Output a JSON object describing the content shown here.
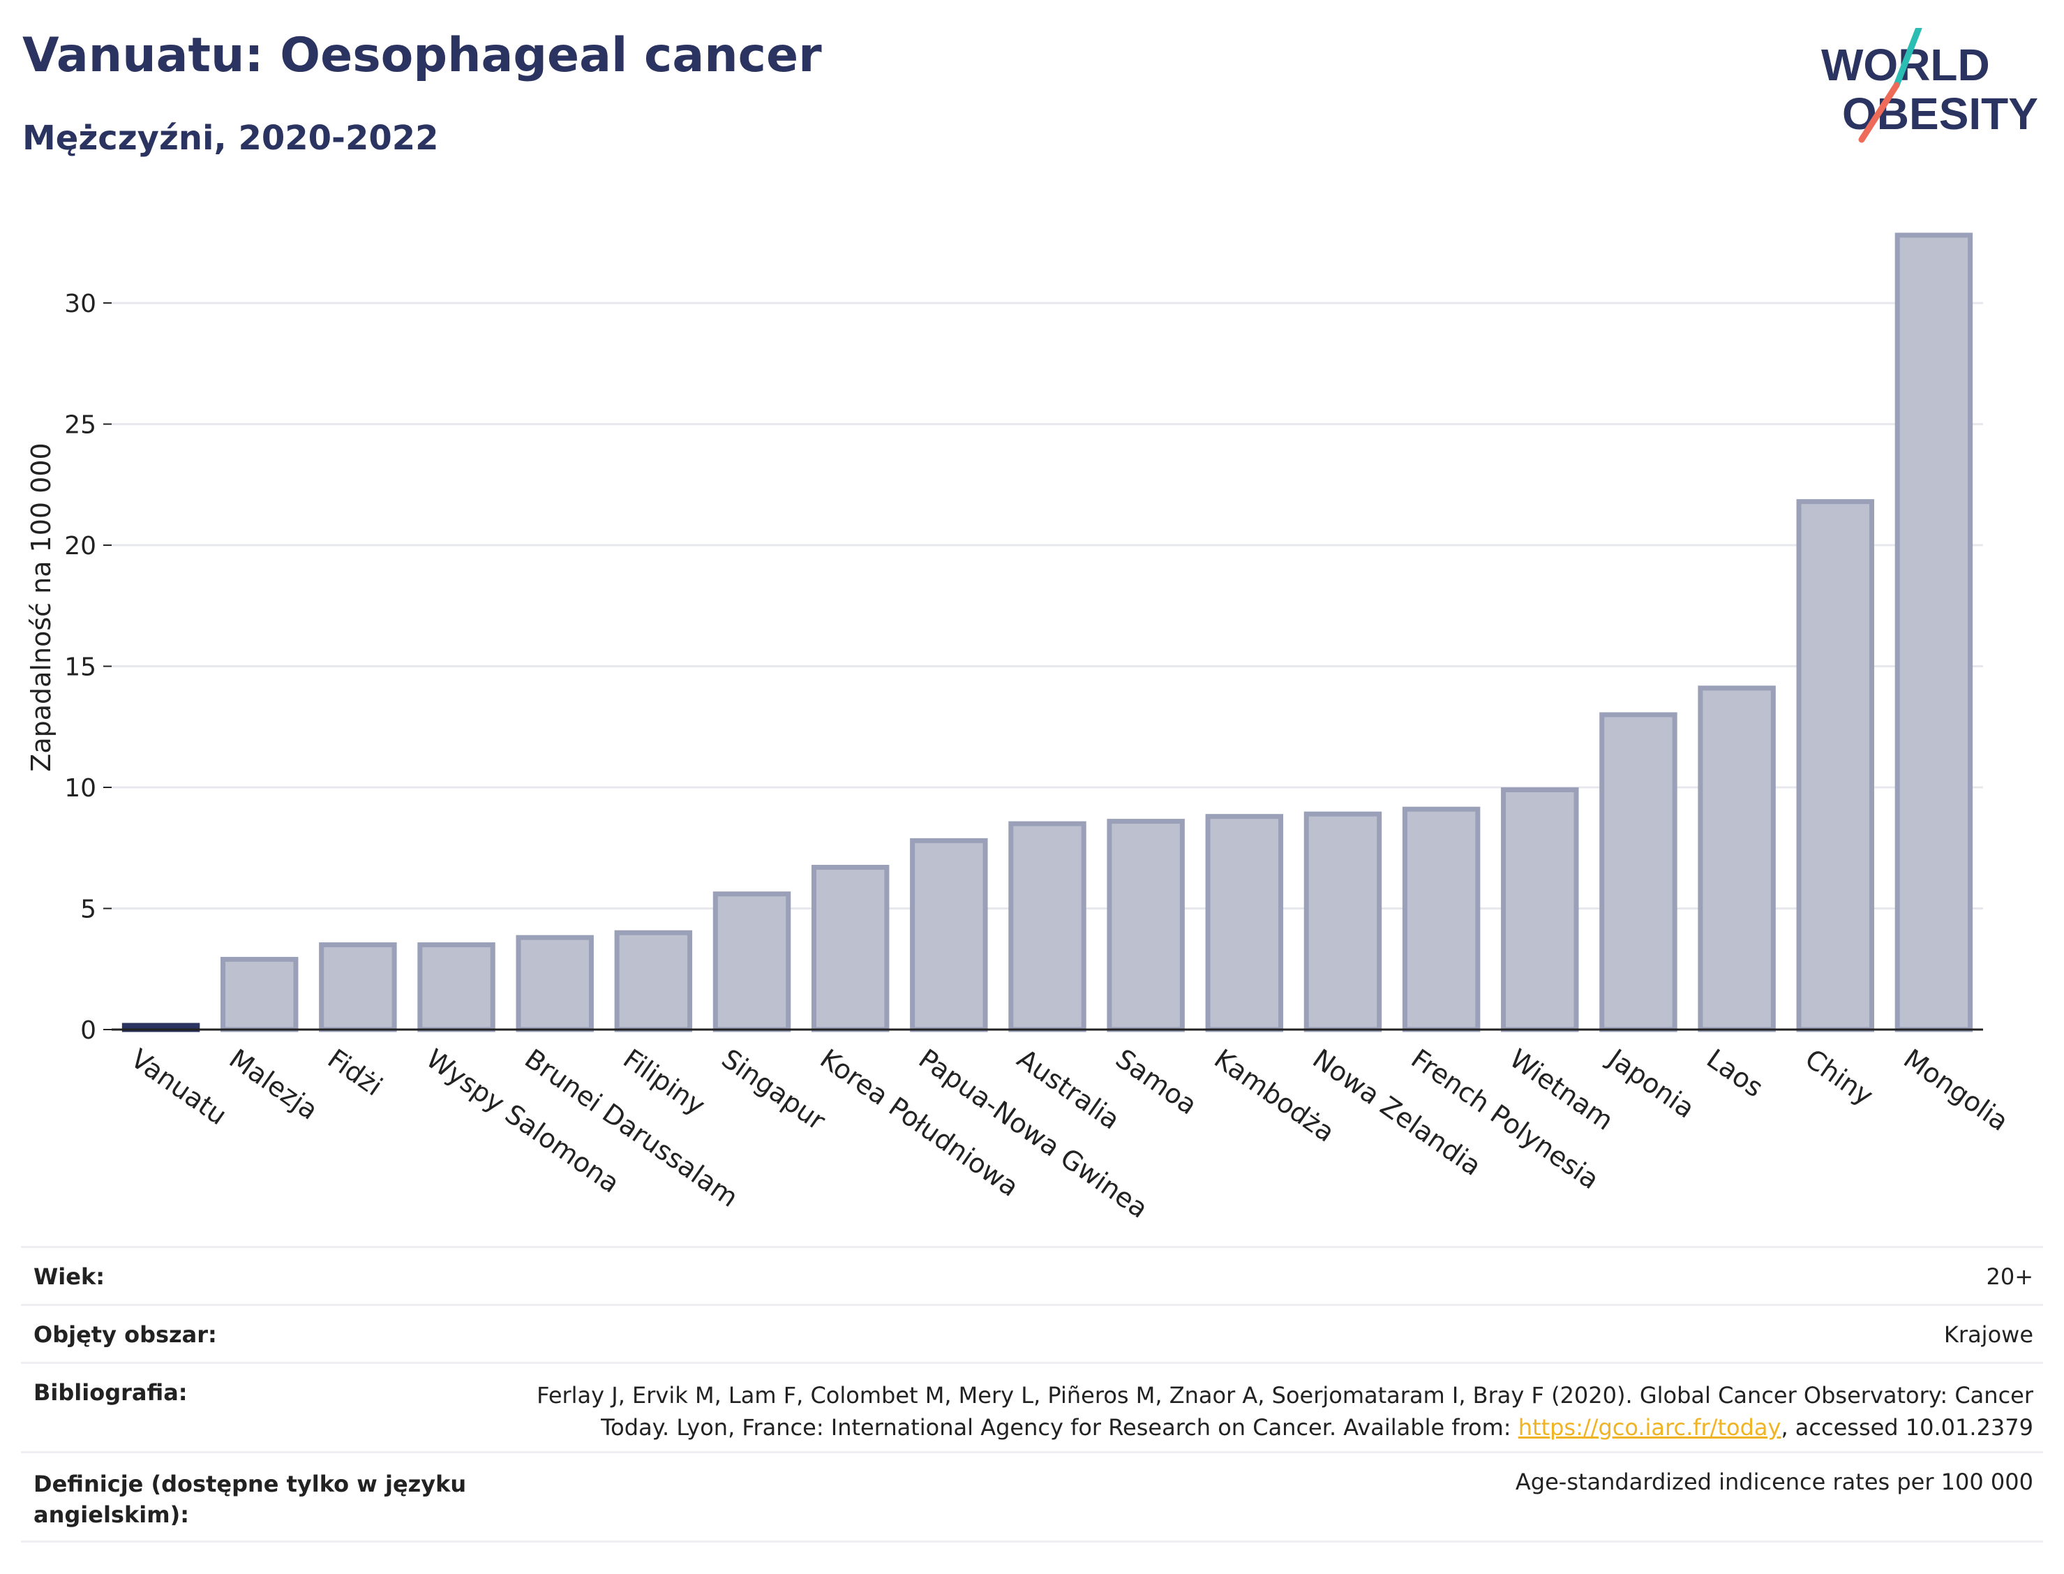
{
  "header": {
    "title": "Vanuatu: Oesophageal cancer",
    "subtitle": "Mężczyźni, 2020-2022"
  },
  "logo": {
    "line1": "WORLD",
    "line2": "OBESITY"
  },
  "colors": {
    "title": "#2b3360",
    "bar_fill": "#bcc0cf",
    "bar_stroke": "#9aa0b8",
    "highlight": "#2b3360",
    "grid": "#e6e8ee",
    "link": "#f0b323",
    "logo_teal": "#2bbcb4",
    "logo_coral": "#ee6b5a"
  },
  "chart_data": {
    "type": "bar",
    "title": "Vanuatu: Oesophageal cancer",
    "subtitle": "Mężczyźni, 2020-2022",
    "ylabel": "Zapadalność na 100 000",
    "xlabel": "",
    "ylim": [
      0,
      33
    ],
    "yticks": [
      0,
      5,
      10,
      15,
      20,
      25,
      30
    ],
    "grid": true,
    "highlight_category": "Vanuatu",
    "categories": [
      "Vanuatu",
      "Malezja",
      "Fidżi",
      "Wyspy Salomona",
      "Brunei Darussalam",
      "Filipiny",
      "Singapur",
      "Korea Południowa",
      "Papua-Nowa Gwinea",
      "Australia",
      "Samoa",
      "Kambodża",
      "Nowa Zelandia",
      "French Polynesia",
      "Wietnam",
      "Japonia",
      "Laos",
      "Chiny",
      "Mongolia"
    ],
    "values": [
      0.1,
      2.9,
      3.5,
      3.5,
      3.8,
      4.0,
      5.6,
      6.7,
      7.8,
      8.5,
      8.6,
      8.8,
      8.9,
      9.1,
      9.9,
      13.0,
      14.1,
      21.8,
      32.8
    ]
  },
  "meta": {
    "age_label": "Wiek:",
    "age_value": "20+",
    "area_label": "Objęty obszar:",
    "area_value": "Krajowe",
    "biblio_label": "Bibliografia:",
    "biblio_line1": "Ferlay J, Ervik M, Lam F, Colombet M, Mery L, Piñeros M, Znaor A, Soerjomataram I, Bray F (2020). Global Cancer Observatory: Cancer",
    "biblio_line2_pre": "Today. Lyon, France: International Agency for Research on Cancer. Available from: ",
    "biblio_link": "https://gco.iarc.fr/today",
    "biblio_line2_post": ", accessed 10.01.2379",
    "def_label_line1": "Definicje (dostępne tylko w języku",
    "def_label_line2": "angielskim):",
    "def_value": "Age-standardized indicence rates per 100 000"
  }
}
